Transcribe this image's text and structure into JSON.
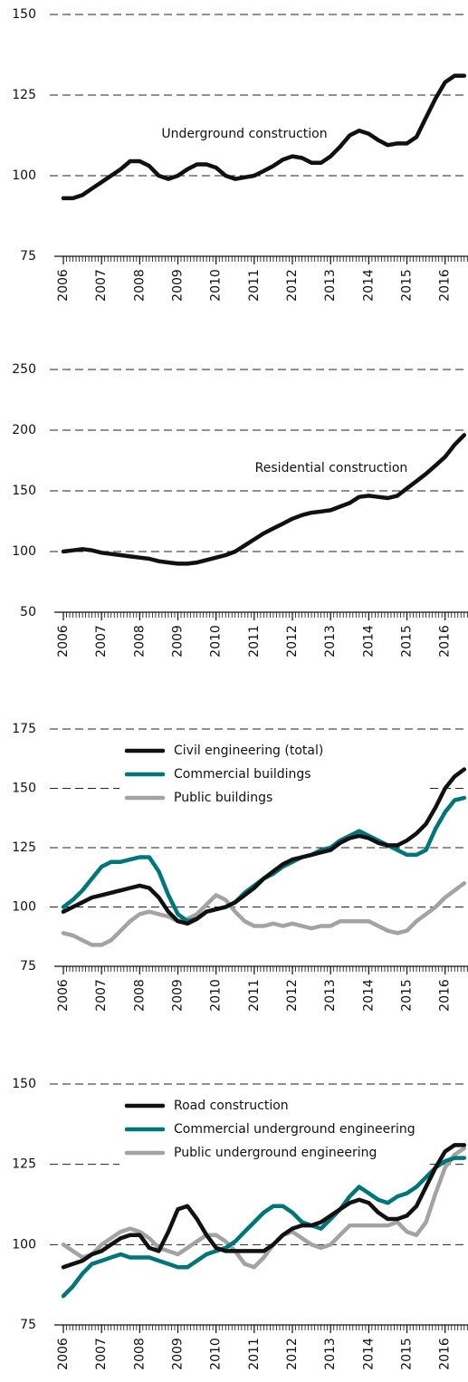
{
  "chart_data": [
    {
      "type": "line",
      "xlim": [
        2006,
        2016.6
      ],
      "xticks": [
        2006,
        2007,
        2008,
        2009,
        2010,
        2011,
        2012,
        2013,
        2014,
        2015,
        2016
      ],
      "ylim": [
        75,
        150
      ],
      "yticks": [
        75,
        100,
        125,
        150
      ],
      "grid": true,
      "x": [
        2006,
        2006.25,
        2006.5,
        2006.75,
        2007,
        2007.25,
        2007.5,
        2007.75,
        2008,
        2008.25,
        2008.5,
        2008.75,
        2009,
        2009.25,
        2009.5,
        2009.75,
        2010,
        2010.25,
        2010.5,
        2010.75,
        2011,
        2011.25,
        2011.5,
        2011.75,
        2012,
        2012.25,
        2012.5,
        2012.75,
        2013,
        2013.25,
        2013.5,
        2013.75,
        2014,
        2014.25,
        2014.5,
        2014.75,
        2015,
        2015.25,
        2015.5,
        2015.75,
        2016,
        2016.25,
        2016.5
      ],
      "series": [
        {
          "name": "Underground construction",
          "color": "#111111",
          "values": [
            93,
            93,
            94,
            96,
            98,
            100,
            102,
            104.5,
            104.5,
            103,
            100,
            99,
            100,
            102,
            103.5,
            103.5,
            102.5,
            100,
            99,
            99.5,
            100,
            101.5,
            103,
            105,
            106,
            105.5,
            104,
            104,
            106,
            109,
            112.5,
            114,
            113,
            111,
            109.5,
            110,
            110,
            112,
            118,
            124,
            129,
            131,
            131
          ]
        }
      ]
    },
    {
      "type": "line",
      "xlim": [
        2006,
        2016.6
      ],
      "xticks": [
        2006,
        2007,
        2008,
        2009,
        2010,
        2011,
        2012,
        2013,
        2014,
        2015,
        2016
      ],
      "ylim": [
        50,
        250
      ],
      "yticks": [
        50,
        100,
        150,
        200,
        250
      ],
      "grid": true,
      "x": [
        2006,
        2006.25,
        2006.5,
        2006.75,
        2007,
        2007.25,
        2007.5,
        2007.75,
        2008,
        2008.25,
        2008.5,
        2008.75,
        2009,
        2009.25,
        2009.5,
        2009.75,
        2010,
        2010.25,
        2010.5,
        2010.75,
        2011,
        2011.25,
        2011.5,
        2011.75,
        2012,
        2012.25,
        2012.5,
        2012.75,
        2013,
        2013.25,
        2013.5,
        2013.75,
        2014,
        2014.25,
        2014.5,
        2014.75,
        2015,
        2015.25,
        2015.5,
        2015.75,
        2016,
        2016.25,
        2016.5
      ],
      "series": [
        {
          "name": "Residential construction",
          "color": "#111111",
          "values": [
            100,
            101,
            102,
            101,
            99,
            98,
            97,
            96,
            95,
            94,
            92,
            91,
            90,
            90,
            91,
            93,
            95,
            97,
            100,
            105,
            110,
            115,
            119,
            123,
            127,
            130,
            132,
            133,
            134,
            137,
            140,
            145,
            146,
            145,
            144,
            146,
            152,
            158,
            164,
            171,
            178,
            188,
            196
          ]
        }
      ]
    },
    {
      "type": "line",
      "xlim": [
        2006,
        2016.6
      ],
      "xticks": [
        2006,
        2007,
        2008,
        2009,
        2010,
        2011,
        2012,
        2013,
        2014,
        2015,
        2016
      ],
      "ylim": [
        75,
        175
      ],
      "yticks": [
        75,
        100,
        125,
        150,
        175
      ],
      "grid": true,
      "legend": "top-left",
      "x": [
        2006,
        2006.25,
        2006.5,
        2006.75,
        2007,
        2007.25,
        2007.5,
        2007.75,
        2008,
        2008.25,
        2008.5,
        2008.75,
        2009,
        2009.25,
        2009.5,
        2009.75,
        2010,
        2010.25,
        2010.5,
        2010.75,
        2011,
        2011.25,
        2011.5,
        2011.75,
        2012,
        2012.25,
        2012.5,
        2012.75,
        2013,
        2013.25,
        2013.5,
        2013.75,
        2014,
        2014.25,
        2014.5,
        2014.75,
        2015,
        2015.25,
        2015.5,
        2015.75,
        2016,
        2016.25,
        2016.5
      ],
      "series": [
        {
          "name": "Civil engineering (total)",
          "color": "#111111",
          "values": [
            98,
            100,
            102,
            104,
            105,
            106,
            107,
            108,
            109,
            108,
            104,
            98,
            94,
            93,
            95,
            98,
            99,
            100,
            102,
            105,
            108,
            112,
            115,
            118,
            120,
            121,
            122,
            123,
            124,
            127,
            129,
            130,
            129,
            127,
            126,
            126,
            128,
            131,
            135,
            142,
            150,
            155,
            158
          ]
        },
        {
          "name": "Commercial buildings",
          "color": "#00767b",
          "values": [
            100,
            103,
            107,
            112,
            117,
            119,
            119,
            120,
            121,
            121,
            115,
            105,
            97,
            94,
            95,
            98,
            99,
            100,
            102,
            106,
            109,
            112,
            114,
            117,
            119,
            121,
            122,
            124,
            125,
            128,
            130,
            132,
            130,
            128,
            126,
            124,
            122,
            122,
            124,
            133,
            140,
            145,
            146
          ]
        },
        {
          "name": "Public buildings",
          "color": "#a3a3a3",
          "values": [
            89,
            88,
            86,
            84,
            84,
            86,
            90,
            94,
            97,
            98,
            97,
            96,
            94,
            95,
            97,
            101,
            105,
            103,
            98,
            94,
            92,
            92,
            93,
            92,
            93,
            92,
            91,
            92,
            92,
            94,
            94,
            94,
            94,
            92,
            90,
            89,
            90,
            94,
            97,
            100,
            104,
            107,
            110
          ]
        }
      ]
    },
    {
      "type": "line",
      "xlim": [
        2006,
        2016.6
      ],
      "xticks": [
        2006,
        2007,
        2008,
        2009,
        2010,
        2011,
        2012,
        2013,
        2014,
        2015,
        2016
      ],
      "ylim": [
        75,
        150
      ],
      "yticks": [
        75,
        100,
        125,
        150
      ],
      "grid": true,
      "legend": "top-left",
      "x": [
        2006,
        2006.25,
        2006.5,
        2006.75,
        2007,
        2007.25,
        2007.5,
        2007.75,
        2008,
        2008.25,
        2008.5,
        2008.75,
        2009,
        2009.25,
        2009.5,
        2009.75,
        2010,
        2010.25,
        2010.5,
        2010.75,
        2011,
        2011.25,
        2011.5,
        2011.75,
        2012,
        2012.25,
        2012.5,
        2012.75,
        2013,
        2013.25,
        2013.5,
        2013.75,
        2014,
        2014.25,
        2014.5,
        2014.75,
        2015,
        2015.25,
        2015.5,
        2015.75,
        2016,
        2016.25,
        2016.5
      ],
      "series": [
        {
          "name": "Road construction",
          "color": "#111111",
          "values": [
            93,
            94,
            95,
            97,
            98,
            100,
            102,
            103,
            103,
            99,
            98,
            104,
            111,
            112,
            108,
            103,
            99,
            98,
            98,
            98,
            98,
            98,
            100,
            103,
            105,
            106,
            106,
            107,
            109,
            111,
            113,
            114,
            113,
            110,
            108,
            108,
            109,
            112,
            118,
            124,
            129,
            131,
            131
          ]
        },
        {
          "name": "Commercial underground engineering",
          "color": "#00767b",
          "values": [
            84,
            87,
            91,
            94,
            95,
            96,
            97,
            96,
            96,
            96,
            95,
            94,
            93,
            93,
            95,
            97,
            98,
            99,
            101,
            104,
            107,
            110,
            112,
            112,
            110,
            107,
            106,
            105,
            108,
            111,
            115,
            118,
            116,
            114,
            113,
            115,
            116,
            118,
            121,
            124,
            126,
            127,
            127
          ]
        },
        {
          "name": "Public underground engineering",
          "color": "#a3a3a3",
          "values": [
            100,
            98,
            96,
            97,
            100,
            102,
            104,
            105,
            104,
            102,
            99,
            98,
            97,
            99,
            101,
            103,
            103,
            101,
            98,
            94,
            93,
            96,
            100,
            103,
            104,
            102,
            100,
            99,
            100,
            103,
            106,
            106,
            106,
            106,
            106,
            107,
            104,
            103,
            107,
            116,
            124,
            128,
            130
          ]
        }
      ]
    }
  ]
}
